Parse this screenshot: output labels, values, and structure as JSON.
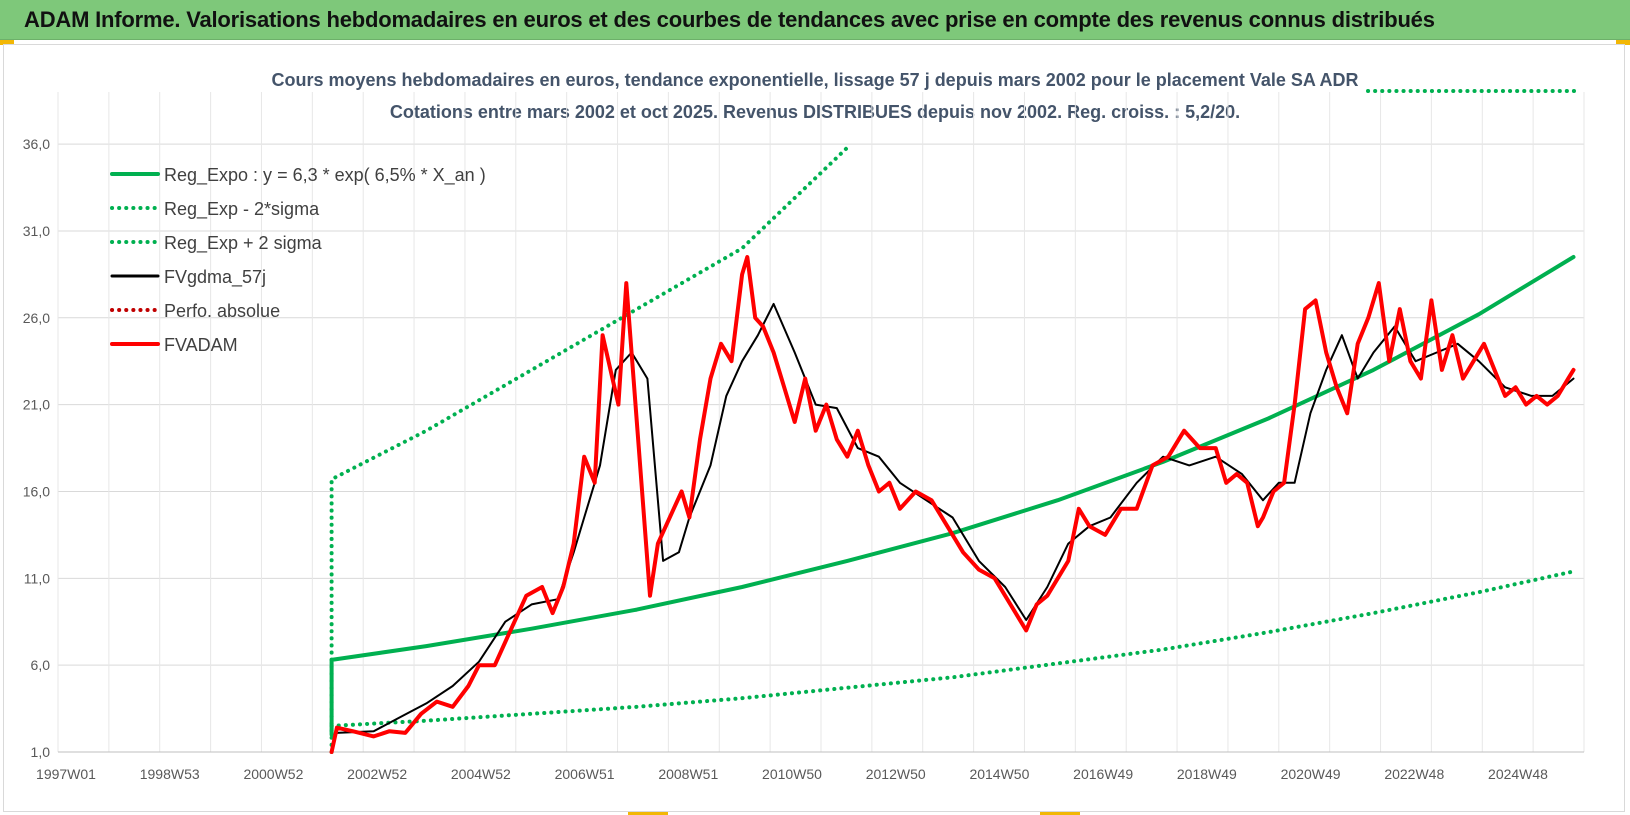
{
  "header": {
    "title": "ADAM Informe. Valorisations hebdomadaires en euros et des courbes de tendances avec prise en compte des revenus connus distribués"
  },
  "colors": {
    "banner": "#7ec87a",
    "reg_expo": "#00b050",
    "sigma_bands": "#00b050",
    "fvgdma": "#000000",
    "perfo": "#c00000",
    "fvadam": "#ff0000",
    "grid": "#d9d9d9"
  },
  "chart_data": {
    "type": "line",
    "title": "Cours moyens hebdomadaires en euros, tendance exponentielle, lissage 57 j depuis mars 2002 pour le placement Vale SA ADR",
    "subtitle": "Cotations entre mars 2002 et oct 2025. Revenus DISTRIBUES depuis nov 2002. Reg. croiss. : 5,2/20.",
    "xlabel": "",
    "ylabel": "",
    "x_tick_labels": [
      "1997W01",
      "1998W53",
      "2000W52",
      "2002W52",
      "2004W52",
      "2006W51",
      "2008W51",
      "2010W50",
      "2012W50",
      "2014W50",
      "2016W49",
      "2018W49",
      "2020W49",
      "2022W48",
      "2024W48"
    ],
    "y_tick_labels": [
      "1,0",
      "6,0",
      "11,0",
      "16,0",
      "21,0",
      "26,0",
      "31,0",
      "36,0"
    ],
    "ylim": [
      1,
      39
    ],
    "xlim": [
      1997.0,
      2026.0
    ],
    "grid": true,
    "legend_position": "top-left",
    "series": [
      {
        "name": "Reg_Expo : y = 6,3 * exp( 6,5% *  X_an )",
        "style": "solid-thick",
        "color": "#00b050",
        "x": [
          2002.2,
          2002.2,
          2004.0,
          2006.0,
          2008.0,
          2010.0,
          2012.0,
          2014.0,
          2016.0,
          2018.0,
          2020.0,
          2022.0,
          2024.0,
          2025.8
        ],
        "y": [
          2.0,
          6.3,
          7.1,
          8.1,
          9.2,
          10.5,
          12.0,
          13.6,
          15.5,
          17.7,
          20.2,
          23.0,
          26.2,
          29.5
        ]
      },
      {
        "name": "Reg_Exp - 2*sigma",
        "style": "dotted",
        "color": "#00b050",
        "x": [
          2002.2,
          2004.0,
          2006.0,
          2008.0,
          2010.0,
          2012.0,
          2014.0,
          2016.0,
          2018.0,
          2020.0,
          2022.0,
          2024.0,
          2025.8
        ],
        "y": [
          2.5,
          2.8,
          3.2,
          3.6,
          4.1,
          4.7,
          5.3,
          6.1,
          6.9,
          7.9,
          9.0,
          10.2,
          11.4
        ]
      },
      {
        "name": "Reg_Exp + 2 sigma",
        "style": "dotted",
        "color": "#00b050",
        "x": [
          2002.2,
          2002.2,
          2004.0,
          2006.0,
          2008.0,
          2010.0,
          2012.0
        ],
        "y": [
          1.0,
          16.7,
          19.5,
          23.0,
          26.5,
          30.0,
          35.8
        ]
      },
      {
        "name": "FVgdma_57j",
        "style": "solid",
        "color": "#000000",
        "x": [
          2002.3,
          2003.0,
          2003.5,
          2004.0,
          2004.5,
          2005.0,
          2005.5,
          2006.0,
          2006.5,
          2006.8,
          2007.0,
          2007.3,
          2007.6,
          2007.9,
          2008.2,
          2008.5,
          2008.8,
          2009.0,
          2009.4,
          2009.7,
          2010.0,
          2010.3,
          2010.6,
          2011.0,
          2011.4,
          2011.8,
          2012.2,
          2012.6,
          2013.0,
          2013.5,
          2014.0,
          2014.5,
          2015.0,
          2015.4,
          2015.8,
          2016.2,
          2016.6,
          2017.0,
          2017.5,
          2018.0,
          2018.5,
          2019.0,
          2019.5,
          2019.9,
          2020.2,
          2020.5,
          2020.8,
          2021.1,
          2021.4,
          2021.7,
          2022.0,
          2022.4,
          2022.8,
          2023.2,
          2023.6,
          2024.0,
          2024.5,
          2025.0,
          2025.4,
          2025.8
        ],
        "y": [
          2.1,
          2.2,
          3.0,
          3.8,
          4.8,
          6.2,
          8.5,
          9.5,
          9.8,
          12.5,
          14.5,
          17.5,
          23.0,
          24.0,
          22.5,
          12.0,
          12.5,
          14.5,
          17.5,
          21.5,
          23.5,
          25.0,
          26.8,
          24.0,
          21.0,
          20.8,
          18.5,
          18.0,
          16.5,
          15.5,
          14.5,
          12.0,
          10.5,
          8.6,
          10.5,
          13.0,
          14.0,
          14.5,
          16.5,
          18.0,
          17.5,
          18.0,
          17.0,
          15.5,
          16.5,
          16.5,
          20.5,
          23.0,
          25.0,
          22.5,
          24.0,
          25.5,
          23.5,
          24.0,
          24.5,
          23.5,
          22.0,
          21.5,
          21.5,
          22.5
        ]
      },
      {
        "name": "Perfo. absolue",
        "style": "dotted",
        "color": "#c00000",
        "x": [],
        "y": []
      },
      {
        "name": "FVADAM",
        "style": "solid-thick",
        "color": "#ff0000",
        "x": [
          2002.2,
          2002.3,
          2002.6,
          2003.0,
          2003.3,
          2003.6,
          2003.9,
          2004.2,
          2004.5,
          2004.8,
          2005.0,
          2005.3,
          2005.6,
          2005.9,
          2006.2,
          2006.4,
          2006.6,
          2006.8,
          2007.0,
          2007.2,
          2007.35,
          2007.5,
          2007.65,
          2007.8,
          2007.95,
          2008.1,
          2008.25,
          2008.4,
          2008.55,
          2008.7,
          2008.85,
          2009.0,
          2009.2,
          2009.4,
          2009.6,
          2009.8,
          2010.0,
          2010.1,
          2010.25,
          2010.4,
          2010.6,
          2010.8,
          2011.0,
          2011.2,
          2011.4,
          2011.6,
          2011.8,
          2012.0,
          2012.2,
          2012.4,
          2012.6,
          2012.8,
          2013.0,
          2013.3,
          2013.6,
          2013.9,
          2014.2,
          2014.5,
          2014.8,
          2015.1,
          2015.4,
          2015.6,
          2015.8,
          2016.0,
          2016.2,
          2016.4,
          2016.6,
          2016.9,
          2017.2,
          2017.5,
          2017.8,
          2018.1,
          2018.4,
          2018.7,
          2019.0,
          2019.2,
          2019.4,
          2019.6,
          2019.8,
          2019.9,
          2020.1,
          2020.3,
          2020.5,
          2020.7,
          2020.9,
          2021.1,
          2021.3,
          2021.5,
          2021.7,
          2021.9,
          2022.1,
          2022.3,
          2022.5,
          2022.7,
          2022.9,
          2023.1,
          2023.3,
          2023.5,
          2023.7,
          2023.9,
          2024.1,
          2024.3,
          2024.5,
          2024.7,
          2024.9,
          2025.1,
          2025.3,
          2025.5,
          2025.7,
          2025.8
        ],
        "y": [
          1.0,
          2.4,
          2.2,
          1.9,
          2.2,
          2.1,
          3.2,
          3.9,
          3.6,
          4.8,
          6.0,
          6.0,
          8.0,
          10.0,
          10.5,
          9.0,
          10.5,
          13.0,
          18.0,
          16.5,
          25.0,
          23.0,
          21.0,
          28.0,
          22.0,
          16.0,
          10.0,
          13.0,
          14.0,
          15.0,
          16.0,
          14.5,
          19.0,
          22.5,
          24.5,
          23.5,
          28.5,
          29.5,
          26.0,
          25.5,
          24.0,
          22.0,
          20.0,
          22.5,
          19.5,
          21.0,
          19.0,
          18.0,
          19.5,
          17.5,
          16.0,
          16.5,
          15.0,
          16.0,
          15.5,
          14.0,
          12.5,
          11.5,
          11.0,
          9.5,
          8.0,
          9.5,
          10.0,
          11.0,
          12.0,
          15.0,
          14.0,
          13.5,
          15.0,
          15.0,
          17.5,
          18.0,
          19.5,
          18.5,
          18.5,
          16.5,
          17.0,
          16.5,
          14.0,
          14.5,
          16.0,
          16.5,
          21.0,
          26.5,
          27.0,
          24.0,
          22.0,
          20.5,
          24.5,
          26.0,
          28.0,
          23.5,
          26.5,
          23.5,
          22.5,
          27.0,
          23.0,
          25.0,
          22.5,
          23.5,
          24.5,
          23.0,
          21.5,
          22.0,
          21.0,
          21.5,
          21.0,
          21.5,
          22.5,
          23.0
        ]
      }
    ]
  }
}
